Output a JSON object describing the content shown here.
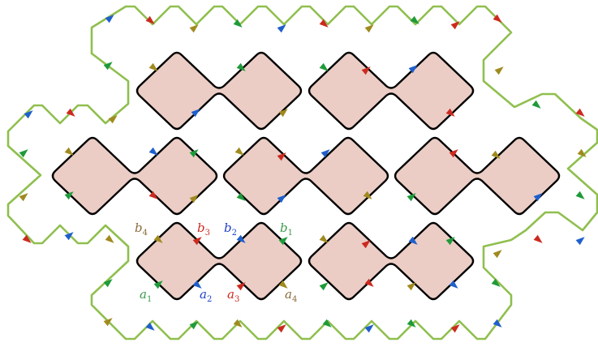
{
  "colors": {
    "outer_boundary": "#8fbf4e",
    "tile_fill": "#ebcdc5",
    "tile_stroke": "#000000",
    "arrow_red": "#cc2a1f",
    "arrow_blue": "#1f5fcc",
    "arrow_green": "#1f9a3a",
    "arrow_olive": "#a08a1f"
  },
  "labels": [
    {
      "id": "b4",
      "base": "b",
      "sub": "4",
      "color": "#8a6a3a"
    },
    {
      "id": "b3",
      "base": "b",
      "sub": "3",
      "color": "#cc2a1f"
    },
    {
      "id": "b2",
      "base": "b",
      "sub": "2",
      "color": "#1f3fcc"
    },
    {
      "id": "b1",
      "base": "b",
      "sub": "1",
      "color": "#3a9a4a"
    },
    {
      "id": "a1",
      "base": "a",
      "sub": "1",
      "color": "#3a9a4a"
    },
    {
      "id": "a2",
      "base": "a",
      "sub": "2",
      "color": "#1f3fcc"
    },
    {
      "id": "a3",
      "base": "a",
      "sub": "3",
      "color": "#cc2a1f"
    },
    {
      "id": "a4",
      "base": "a",
      "sub": "4",
      "color": "#8a6a3a"
    }
  ]
}
